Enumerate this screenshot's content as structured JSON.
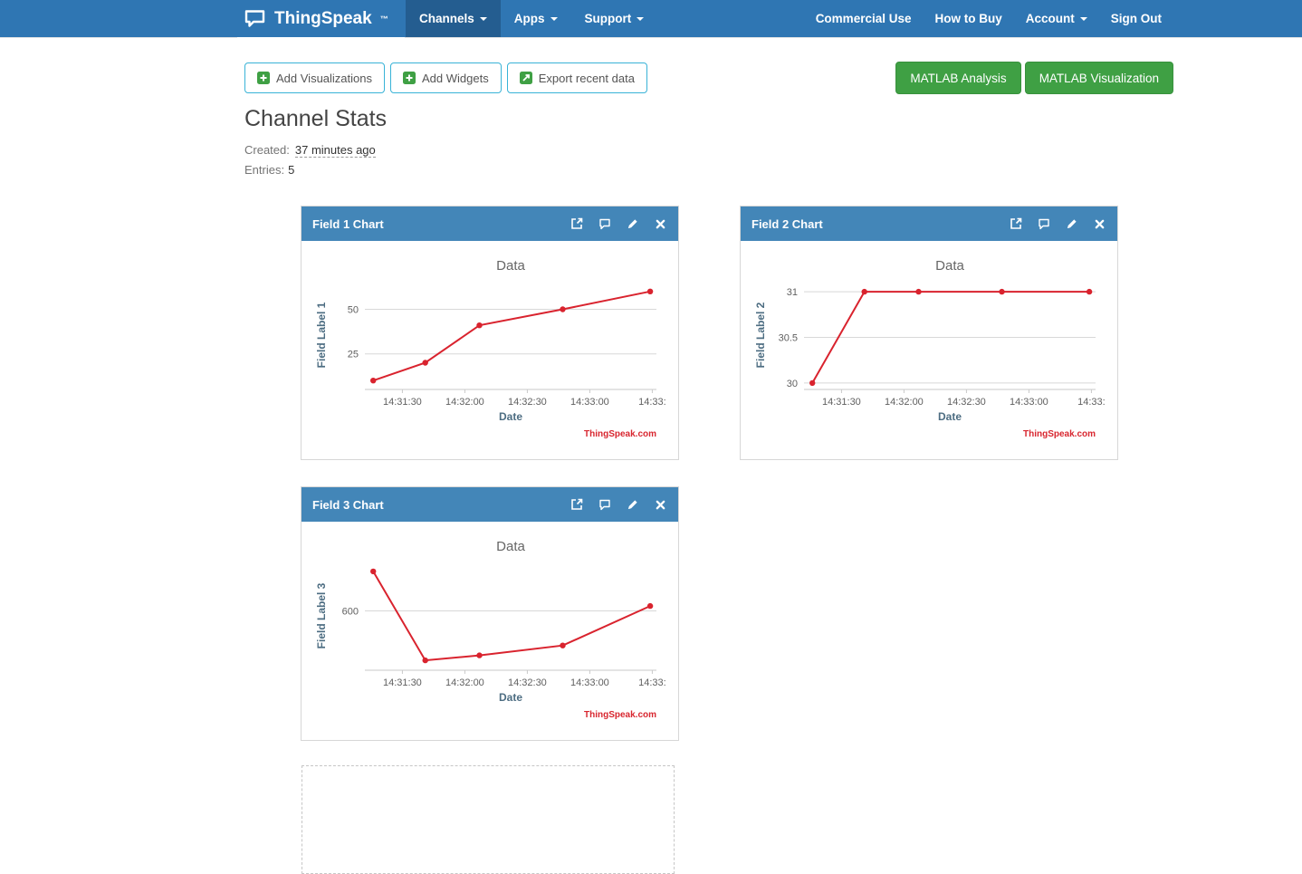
{
  "colors": {
    "navbar": "#2f76b3",
    "navbar_active": "#245d90",
    "panel_header": "#4386b8",
    "green": "#3fa044",
    "outline_border": "#39b3d7",
    "chart_line": "#d9232e",
    "watermark": "#d8262f"
  },
  "navbar": {
    "brand": "ThingSpeak",
    "brand_tm": "™",
    "left": [
      {
        "label": "Channels"
      },
      {
        "label": "Apps"
      },
      {
        "label": "Support"
      }
    ],
    "right": [
      {
        "label": "Commercial Use"
      },
      {
        "label": "How to Buy"
      },
      {
        "label": "Account"
      },
      {
        "label": "Sign Out"
      }
    ]
  },
  "toolbar": {
    "add_visualizations": "Add Visualizations",
    "add_widgets": "Add Widgets",
    "export_recent": "Export recent data",
    "matlab_analysis": "MATLAB Analysis",
    "matlab_visualization": "MATLAB Visualization"
  },
  "stats": {
    "title": "Channel Stats",
    "created_label": "Created:",
    "created_value": "37 minutes ago",
    "entries_label": "Entries:",
    "entries_value": "5"
  },
  "chart_data": [
    {
      "type": "line",
      "panel_title": "Field 1 Chart",
      "title": "Data",
      "xlabel": "Date",
      "ylabel": "Field Label 1",
      "watermark": "ThingSpeak.com",
      "line_color": "#d9232e",
      "x_seconds": [
        76,
        101,
        127,
        167,
        209
      ],
      "values": [
        10,
        20,
        41,
        50,
        60
      ],
      "x_ticks": [
        {
          "t": 90,
          "label": "14:31:30"
        },
        {
          "t": 120,
          "label": "14:32:00"
        },
        {
          "t": 150,
          "label": "14:32:30"
        },
        {
          "t": 180,
          "label": "14:33:00"
        },
        {
          "t": 210,
          "label": "14:33:"
        }
      ],
      "y_ticks": [
        {
          "v": 25,
          "label": "25"
        },
        {
          "v": 50,
          "label": "50"
        }
      ],
      "xlim": [
        72,
        212
      ],
      "ylim": [
        5,
        66
      ],
      "grid": true,
      "legend": false
    },
    {
      "type": "line",
      "panel_title": "Field 2 Chart",
      "title": "Data",
      "xlabel": "Date",
      "ylabel": "Field Label 2",
      "watermark": "ThingSpeak.com",
      "line_color": "#d9232e",
      "x_seconds": [
        76,
        101,
        127,
        167,
        209
      ],
      "values": [
        30,
        31,
        31,
        31,
        31
      ],
      "x_ticks": [
        {
          "t": 90,
          "label": "14:31:30"
        },
        {
          "t": 120,
          "label": "14:32:00"
        },
        {
          "t": 150,
          "label": "14:32:30"
        },
        {
          "t": 180,
          "label": "14:33:00"
        },
        {
          "t": 210,
          "label": "14:33:"
        }
      ],
      "y_ticks": [
        {
          "v": 30,
          "label": "30"
        },
        {
          "v": 30.5,
          "label": "30.5"
        },
        {
          "v": 31,
          "label": "31"
        }
      ],
      "xlim": [
        72,
        212
      ],
      "ylim": [
        29.93,
        31.12
      ],
      "grid": true,
      "legend": false
    },
    {
      "type": "line",
      "panel_title": "Field 3 Chart",
      "title": "Data",
      "xlabel": "Date",
      "ylabel": "Field Label 3",
      "watermark": "ThingSpeak.com",
      "line_color": "#d9232e",
      "x_seconds": [
        76,
        101,
        127,
        167,
        209
      ],
      "values": [
        680,
        500,
        510,
        530,
        610
      ],
      "x_ticks": [
        {
          "t": 90,
          "label": "14:31:30"
        },
        {
          "t": 120,
          "label": "14:32:00"
        },
        {
          "t": 150,
          "label": "14:32:30"
        },
        {
          "t": 180,
          "label": "14:33:00"
        },
        {
          "t": 210,
          "label": "14:33:"
        }
      ],
      "y_ticks": [
        {
          "v": 600,
          "label": "600"
        }
      ],
      "xlim": [
        72,
        212
      ],
      "ylim": [
        480,
        700
      ],
      "grid": true,
      "legend": false
    }
  ]
}
